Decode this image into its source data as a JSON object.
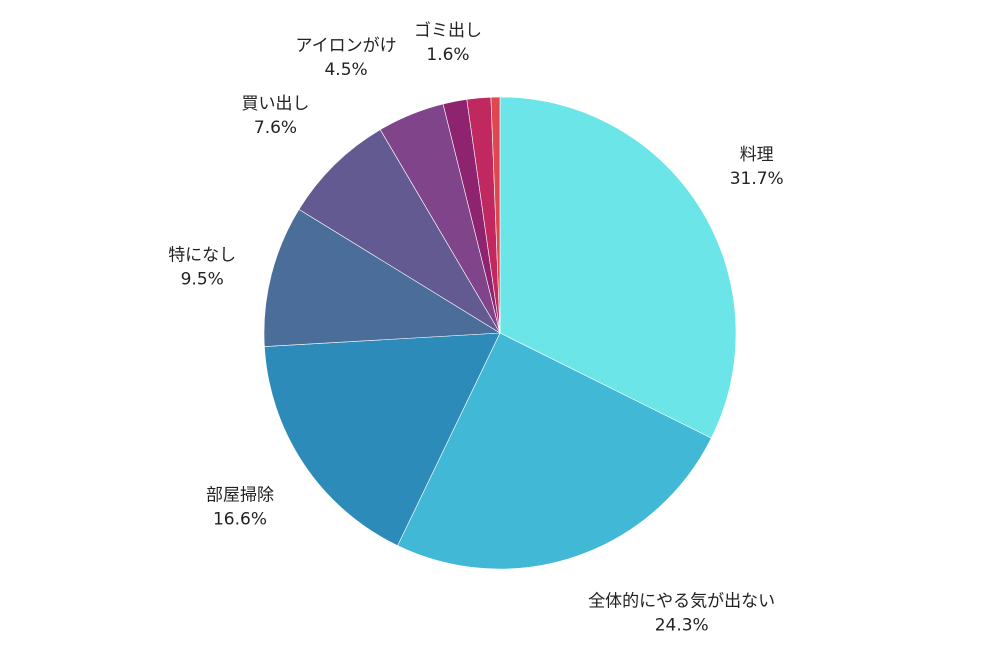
{
  "chart_data": {
    "type": "pie",
    "start": "top",
    "direction": "clockwise",
    "slices": [
      {
        "label": "料理",
        "value": 31.7,
        "value_label": "31.7%",
        "color": "#6be5e8"
      },
      {
        "label": "全体的にやる気が出ない",
        "value": 24.3,
        "value_label": "24.3%",
        "color": "#41b8d5"
      },
      {
        "label": "部屋掃除",
        "value": 16.6,
        "value_label": "16.6%",
        "color": "#2d8bba"
      },
      {
        "label": "特になし",
        "value": 9.5,
        "value_label": "9.5%",
        "color": "#4a6d99"
      },
      {
        "label": "買い出し",
        "value": 7.6,
        "value_label": "7.6%",
        "color": "#635a92"
      },
      {
        "label": "アイロンがけ",
        "value": 4.5,
        "value_label": "4.5%",
        "color": "#7f4489"
      },
      {
        "label": "ゴミ出し",
        "value": 1.6,
        "value_label": "1.6%",
        "color": "#8e2470"
      },
      {
        "label": "",
        "value": 1.6,
        "value_label": "",
        "color": "#c0285f"
      },
      {
        "label": "",
        "value": 0.6,
        "value_label": "",
        "color": "#e0474f"
      }
    ]
  }
}
